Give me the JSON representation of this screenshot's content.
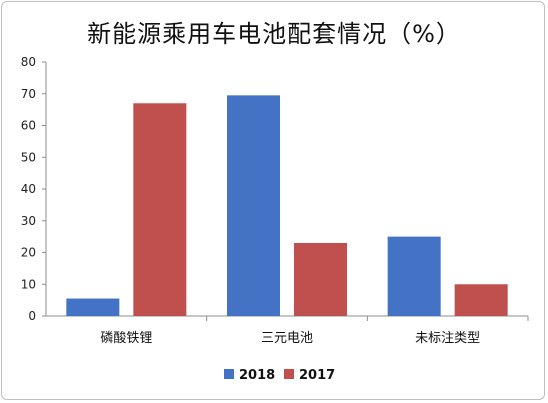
{
  "chart_data": {
    "type": "bar",
    "title": "新能源乘用车电池配套情况（%）",
    "categories": [
      "磷酸铁锂",
      "三元电池",
      "未标注类型"
    ],
    "series": [
      {
        "name": "2018",
        "values": [
          5.5,
          69.5,
          25
        ],
        "color": "#4472c4"
      },
      {
        "name": "2017",
        "values": [
          67,
          23,
          10
        ],
        "color": "#c0504d"
      }
    ],
    "ylim": [
      0,
      80
    ],
    "yticks": [
      0,
      10,
      20,
      30,
      40,
      50,
      60,
      70,
      80
    ],
    "ytick_labels": [
      "0",
      "10",
      "20",
      "30",
      "40",
      "50",
      "60",
      "70",
      "80"
    ],
    "grid": false,
    "legend_position": "bottom"
  }
}
